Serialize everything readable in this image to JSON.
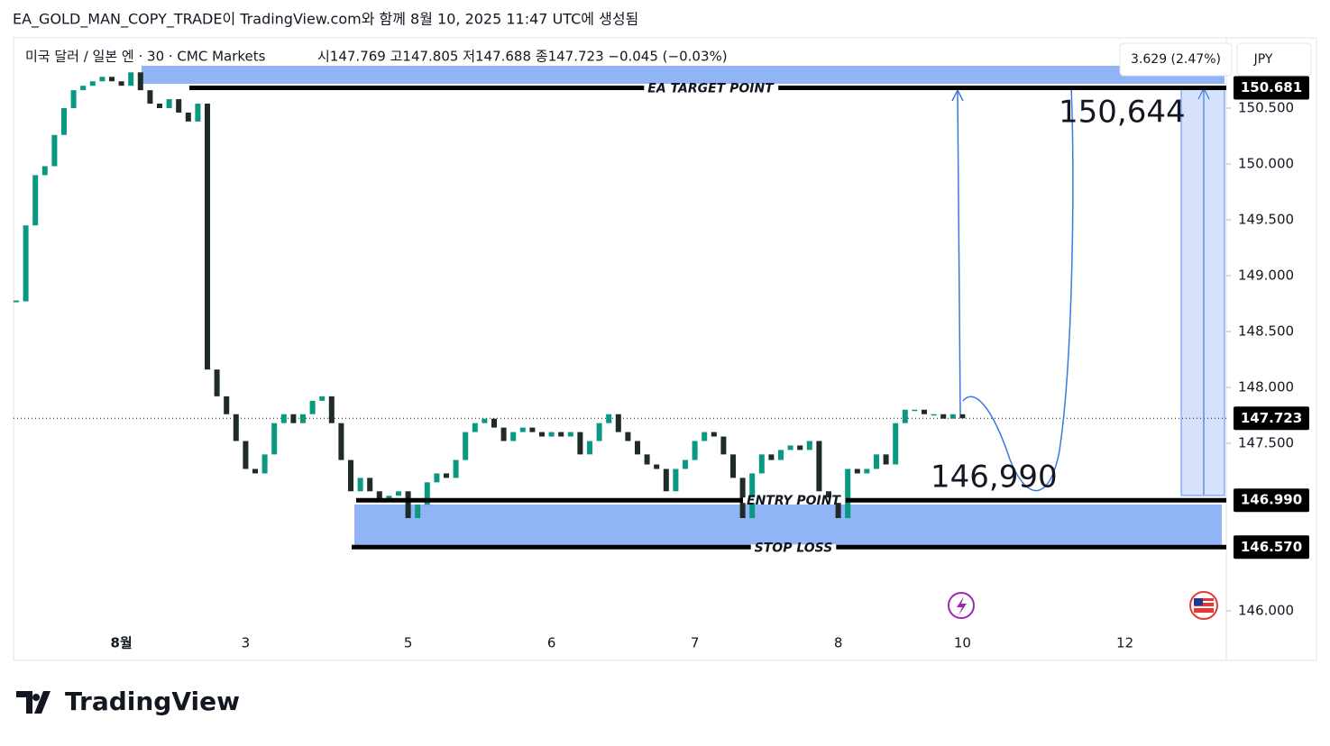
{
  "header": {
    "title": "EA_GOLD_MAN_COPY_TRADE이 TradingView.com와 함께 8월 10, 2025 11:47 UTC에 생성됨"
  },
  "chart_data": {
    "type": "candlestick",
    "symbol": "미국 달러 / 일본 엔 · 30 · CMC Markets",
    "ohlc_text": "시147.769  고147.805  저147.688  종147.723  −0.045 (−0.03%)",
    "categories": [
      null,
      null,
      null,
      null,
      null,
      null,
      null,
      null,
      null,
      null,
      null,
      "8월",
      null,
      null,
      null,
      null,
      null,
      null,
      null,
      null,
      null,
      null,
      null,
      null,
      "3",
      null,
      null,
      null,
      null,
      null,
      null,
      null,
      null,
      null,
      null,
      null,
      null,
      null,
      null,
      null,
      null,
      "5",
      null,
      null,
      null,
      null,
      null,
      null,
      null,
      null,
      null,
      null,
      null,
      null,
      null,
      null,
      "6",
      null,
      null,
      null,
      null,
      null,
      null,
      null,
      null,
      null,
      null,
      null,
      null,
      null,
      null,
      "7",
      null,
      null,
      null,
      null,
      null,
      null,
      null,
      null,
      null,
      null,
      null,
      null,
      null,
      null,
      "8",
      null,
      null,
      null,
      null,
      null,
      null,
      null,
      null,
      null,
      null,
      null,
      null,
      "10",
      null,
      null,
      null,
      null,
      null,
      null,
      null,
      null,
      null,
      null,
      null,
      null,
      null,
      null,
      null,
      null,
      "12",
      null,
      null,
      null,
      null,
      null,
      null,
      null,
      null,
      null,
      null
    ],
    "values": [
      148.77,
      149.45,
      149.9,
      149.98,
      150.26,
      150.5,
      150.66,
      150.7,
      150.74,
      150.78,
      150.74,
      150.7,
      150.82,
      150.66,
      150.54,
      150.5,
      150.58,
      150.46,
      150.38,
      150.54,
      148.16,
      147.92,
      147.76,
      147.52,
      147.27,
      147.23,
      147.4,
      147.68,
      147.76,
      147.68,
      147.76,
      147.88,
      147.92,
      147.68,
      147.35,
      147.07,
      147.19,
      147.07,
      146.99,
      147.03,
      147.07,
      146.83,
      146.95,
      147.15,
      147.23,
      147.19,
      147.35,
      147.6,
      147.68,
      147.72,
      147.64,
      147.52,
      147.6,
      147.64,
      147.6,
      147.56,
      147.6,
      147.56,
      147.6,
      147.4,
      147.52,
      147.68,
      147.76,
      147.6,
      147.52,
      147.4,
      147.31,
      147.27,
      147.07,
      147.27,
      147.35,
      147.52,
      147.6,
      147.56,
      147.4,
      147.19,
      146.83,
      147.23,
      147.4,
      147.35,
      147.44,
      147.48,
      147.44,
      147.52,
      147.07,
      146.99,
      146.83,
      147.27,
      147.23,
      147.27,
      147.4,
      147.31,
      147.68,
      147.8,
      147.8,
      147.76,
      147.76,
      147.72,
      147.76,
      147.723,
      null,
      null,
      null,
      null,
      null,
      null,
      null,
      null,
      null,
      null,
      null,
      null,
      null,
      null,
      null,
      null,
      null,
      null,
      null,
      null,
      null,
      null,
      null,
      null,
      null,
      null,
      null
    ],
    "up_color": "#089981",
    "down_color": "#1e2b27",
    "ylim": [
      145.556,
      151.129
    ],
    "yticks": [
      {
        "value": 146.0,
        "label": "146.000"
      },
      {
        "value": 147.5,
        "label": "147.500"
      },
      {
        "value": 148.0,
        "label": "148.000"
      },
      {
        "value": 148.5,
        "label": "148.500"
      },
      {
        "value": 149.0,
        "label": "149.000"
      },
      {
        "value": 149.5,
        "label": "149.500"
      },
      {
        "value": 150.0,
        "label": "150.000"
      },
      {
        "value": 150.5,
        "label": "150.500"
      }
    ],
    "last_price": 147.723,
    "levels": {
      "names": [
        "EA TARGET POINT",
        "ENTRY POINT",
        "STOP LOSS"
      ],
      "values": [
        150.681,
        146.99,
        146.57
      ],
      "value_labels": [
        "150.681",
        "146.990",
        "146.570"
      ]
    },
    "annotations": [
      "150,644",
      "146,990"
    ],
    "measure": "3.629 (2.47%)",
    "currency": "JPY"
  },
  "footer": {
    "brand": "TradingView"
  }
}
